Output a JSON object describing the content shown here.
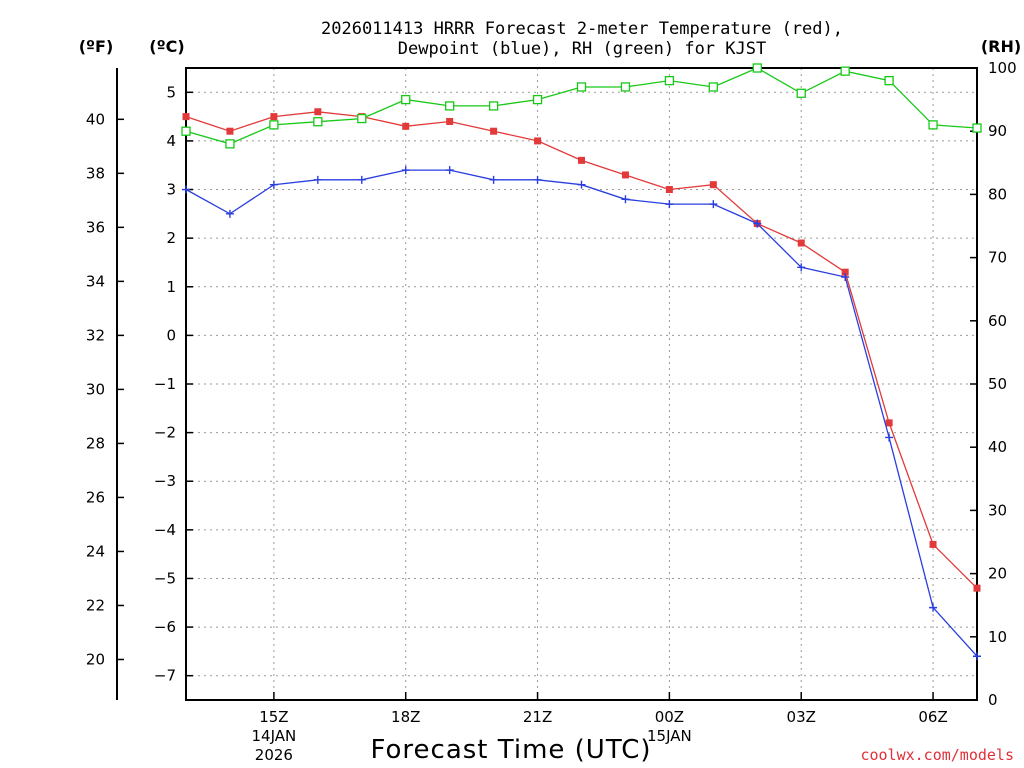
{
  "title_line1": "2026011413 HRRR Forecast 2-meter Temperature (red),",
  "title_line2": "Dewpoint (blue), RH (green) for KJST",
  "units": {
    "f": "(ºF)",
    "c": "(ºC)",
    "rh": "(RH)"
  },
  "xlabel": "Forecast Time (UTC)",
  "credit": "coolwx.com/models",
  "colors": {
    "temp": "#e23a3a",
    "dew": "#2a3ee0",
    "rh": "#17c917"
  },
  "chart_data": {
    "type": "line",
    "x_hours": [
      13,
      14,
      15,
      16,
      17,
      18,
      19,
      20,
      21,
      22,
      23,
      24,
      25,
      26,
      27,
      28,
      29,
      30,
      31
    ],
    "xlim": [
      13,
      31
    ],
    "x_ticks": [
      {
        "hour": 15,
        "lines": [
          "15Z",
          "14JAN",
          "2026"
        ]
      },
      {
        "hour": 18,
        "lines": [
          "18Z"
        ]
      },
      {
        "hour": 21,
        "lines": [
          "21Z"
        ]
      },
      {
        "hour": 24,
        "lines": [
          "00Z",
          "15JAN"
        ]
      },
      {
        "hour": 27,
        "lines": [
          "03Z"
        ]
      },
      {
        "hour": 30,
        "lines": [
          "06Z"
        ]
      }
    ],
    "y_celsius": {
      "range": [
        -7.5,
        5.5
      ],
      "ticks": [
        5,
        4,
        3,
        2,
        1,
        0,
        -1,
        -2,
        -3,
        -4,
        -5,
        -6,
        -7
      ],
      "labels": [
        "5",
        "4",
        "3",
        "2",
        "1",
        "0",
        "−1",
        "−2",
        "−3",
        "−4",
        "−5",
        "−6",
        "−7"
      ]
    },
    "y_fahrenheit": {
      "ticks": [
        40,
        38,
        36,
        34,
        32,
        30,
        28,
        26,
        24,
        22,
        20
      ]
    },
    "y_rh": {
      "range": [
        0,
        100
      ],
      "ticks": [
        100,
        90,
        80,
        70,
        60,
        50,
        40,
        30,
        20,
        10,
        0
      ]
    },
    "series": [
      {
        "name": "Temperature",
        "axis": "celsius",
        "marker": "filled-square",
        "values": [
          4.5,
          4.2,
          4.5,
          4.6,
          4.5,
          4.3,
          4.4,
          4.2,
          4.0,
          3.6,
          3.3,
          3.0,
          3.1,
          2.3,
          1.9,
          1.3,
          -1.8,
          -4.3,
          -5.2
        ]
      },
      {
        "name": "Dewpoint",
        "axis": "celsius",
        "marker": "plus",
        "values": [
          3.0,
          2.5,
          3.1,
          3.2,
          3.2,
          3.4,
          3.4,
          3.2,
          3.2,
          3.1,
          2.8,
          2.7,
          2.7,
          2.3,
          1.4,
          1.2,
          -2.1,
          -5.6,
          -6.6
        ]
      },
      {
        "name": "RH",
        "axis": "rh",
        "marker": "open-square",
        "values": [
          90,
          88,
          91,
          91.5,
          92,
          95,
          94,
          94,
          95,
          97,
          97,
          98,
          97,
          100,
          96,
          99.5,
          98,
          91,
          90.5
        ]
      }
    ]
  }
}
